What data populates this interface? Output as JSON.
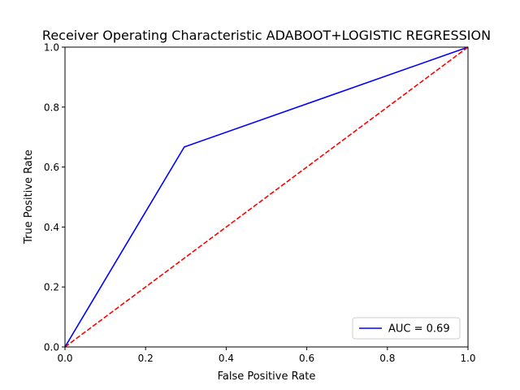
{
  "chart_data": {
    "type": "line",
    "title": "Receiver Operating Characteristic ADABOOT+LOGISTIC REGRESSION",
    "xlabel": "False Positive Rate",
    "ylabel": "True Positive Rate",
    "xlim": [
      0,
      1
    ],
    "ylim": [
      0,
      1
    ],
    "xticks": [
      "0.0",
      "0.2",
      "0.4",
      "0.6",
      "0.8",
      "1.0"
    ],
    "yticks": [
      "0.0",
      "0.2",
      "0.4",
      "0.6",
      "0.8",
      "1.0"
    ],
    "grid": false,
    "legend_position": "lower-right",
    "series": [
      {
        "name": "AUC = 0.69",
        "color": "#0000ff",
        "style": "solid",
        "x": [
          0.0,
          0.296,
          1.0
        ],
        "y": [
          0.0,
          0.667,
          1.0
        ]
      },
      {
        "color": "#ff0000",
        "style": "dashed",
        "x": [
          0.0,
          1.0
        ],
        "y": [
          0.0,
          1.0
        ]
      }
    ]
  }
}
